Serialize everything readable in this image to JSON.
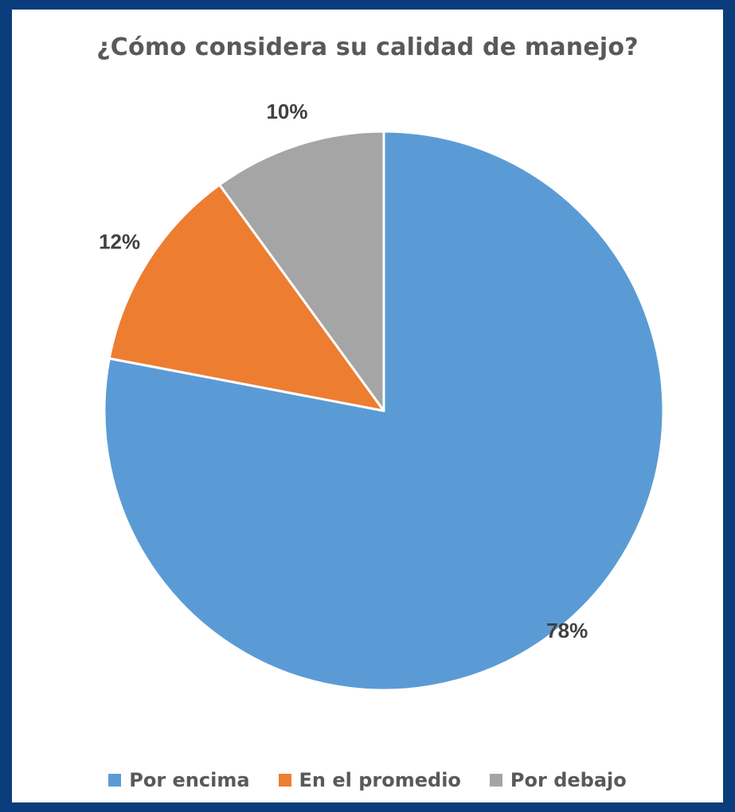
{
  "chart_data": {
    "type": "pie",
    "title": "¿Cómo considera su calidad de manejo?",
    "categories": [
      "Por encima",
      "En el promedio",
      "Por debajo"
    ],
    "values": [
      78,
      12,
      10
    ],
    "data_labels": [
      "78%",
      "12%",
      "10%"
    ],
    "colors": [
      "#5b9bd5",
      "#ed7d31",
      "#a5a5a5"
    ],
    "legend_position": "bottom",
    "start_angle_deg": 0,
    "direction": "clockwise"
  },
  "legend": {
    "items": [
      {
        "label": "Por encima",
        "color": "#5b9bd5"
      },
      {
        "label": "En el promedio",
        "color": "#ed7d31"
      },
      {
        "label": "Por debajo",
        "color": "#a5a5a5"
      }
    ]
  },
  "colors": {
    "frame": "#0b3d7c",
    "card": "#ffffff",
    "title_text": "#595959",
    "label_text": "#404040"
  }
}
